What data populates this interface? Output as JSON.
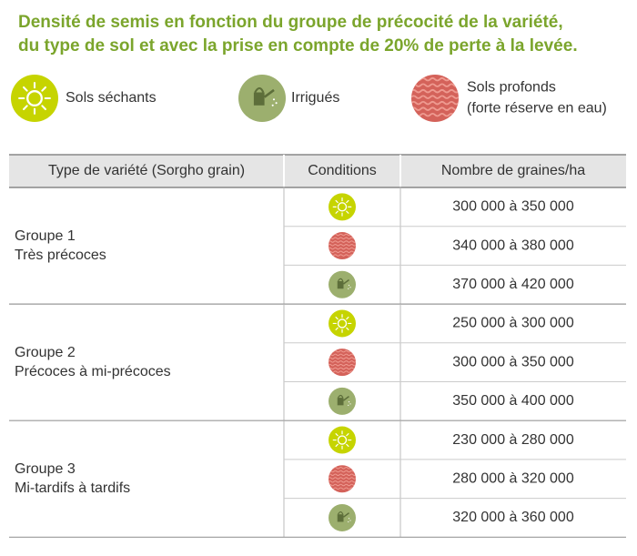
{
  "header": {
    "title": [
      "Densité de semis en fonction du groupe de précocité de la variété,",
      "du type de sol et avec la prise en compte de 20% de perte à la levée."
    ]
  },
  "legend": [
    {
      "label": [
        "Sols séchants"
      ]
    },
    {
      "label": [
        "Irrigués"
      ]
    },
    {
      "label": [
        "Sols profonds",
        "(forte réserve en eau)"
      ]
    }
  ],
  "table": {
    "columns": [
      "Type de variété (Sorgho grain)",
      "Conditions",
      "Nombre de graines/ha"
    ],
    "groups": [
      {
        "name": [
          "Groupe 1",
          "Très précoces"
        ],
        "rows": [
          "300 000 à 350 000",
          "340 000 à 380 000",
          "370 000 à 420 000"
        ]
      },
      {
        "name": [
          "Groupe 2",
          "Précoces à mi-précoces"
        ],
        "rows": [
          "250 000 à 300 000",
          "300 000 à 350 000",
          "350 000 à 400 000"
        ]
      },
      {
        "name": [
          "Groupe 3",
          "Mi-tardifs à tardifs"
        ],
        "rows": [
          "230 000 à 280 000",
          "280 000 à 320 000",
          "320 000 à 360 000"
        ]
      }
    ]
  }
}
